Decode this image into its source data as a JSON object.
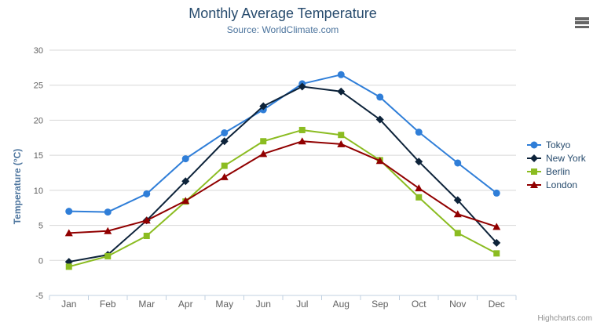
{
  "header": {
    "title": "Monthly Average Temperature",
    "subtitle": "Source: WorldClimate.com"
  },
  "toolbar": {
    "menu_icon": "hamburger-menu-icon"
  },
  "credits": {
    "label": "Highcharts.com"
  },
  "chart_data": {
    "type": "line",
    "title": "Monthly Average Temperature",
    "subtitle": "Source: WorldClimate.com",
    "categories": [
      "Jan",
      "Feb",
      "Mar",
      "Apr",
      "May",
      "Jun",
      "Jul",
      "Aug",
      "Sep",
      "Oct",
      "Nov",
      "Dec"
    ],
    "series": [
      {
        "name": "Tokyo",
        "color": "#2f7ed8",
        "marker": "circle",
        "values": [
          7.0,
          6.9,
          9.5,
          14.5,
          18.2,
          21.5,
          25.2,
          26.5,
          23.3,
          18.3,
          13.9,
          9.6
        ]
      },
      {
        "name": "New York",
        "color": "#0d233a",
        "marker": "diamond",
        "values": [
          -0.2,
          0.8,
          5.7,
          11.3,
          17.0,
          22.0,
          24.8,
          24.1,
          20.1,
          14.1,
          8.6,
          2.5
        ]
      },
      {
        "name": "Berlin",
        "color": "#8bbc21",
        "marker": "square",
        "values": [
          -0.9,
          0.6,
          3.5,
          8.4,
          13.5,
          17.0,
          18.6,
          17.9,
          14.3,
          9.0,
          3.9,
          1.0
        ]
      },
      {
        "name": "London",
        "color": "#910000",
        "marker": "triangle",
        "values": [
          3.9,
          4.2,
          5.7,
          8.5,
          11.9,
          15.2,
          17.0,
          16.6,
          14.2,
          10.3,
          6.6,
          4.8
        ]
      }
    ],
    "xlabel": "",
    "ylabel": "Temperature (°C)",
    "ylim": [
      -5,
      30
    ],
    "ytick_step": 5,
    "grid": true,
    "legend_position": "right",
    "axis_line_color": "#c0d0e0",
    "gridline_color": "#d8d8d8"
  }
}
